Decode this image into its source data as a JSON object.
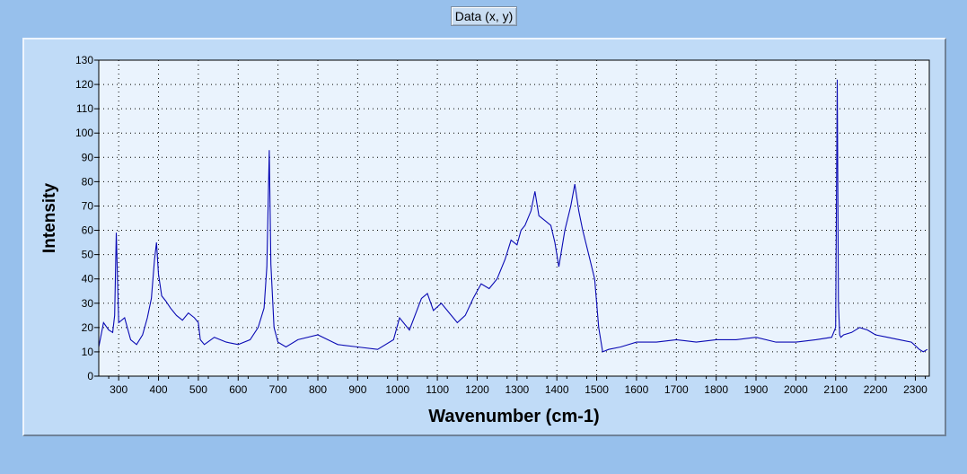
{
  "toolbar": {
    "data_button_label": "Data (x, y)"
  },
  "chart_data": {
    "type": "line",
    "title": "",
    "xlabel": "Wavenumber (cm-1)",
    "ylabel": "Intensity",
    "xlim": [
      250,
      2335
    ],
    "ylim": [
      0,
      130
    ],
    "x_ticks": [
      300,
      400,
      500,
      600,
      700,
      800,
      900,
      1000,
      1100,
      1200,
      1300,
      1400,
      1500,
      1600,
      1700,
      1800,
      1900,
      2000,
      2100,
      2200,
      2300
    ],
    "y_ticks": [
      0,
      10,
      20,
      30,
      40,
      50,
      60,
      70,
      80,
      90,
      100,
      110,
      120,
      130
    ],
    "grid": true,
    "legend": "none",
    "line_color": "#0a0ab4",
    "series": [
      {
        "x": [
          250,
          262,
          275,
          285,
          290,
          294,
          300,
          315,
          330,
          345,
          360,
          372,
          382,
          390,
          395,
          400,
          408,
          418,
          430,
          445,
          460,
          475,
          490,
          500,
          505,
          515,
          540,
          570,
          600,
          630,
          650,
          665,
          672,
          678,
          682,
          690,
          700,
          720,
          750,
          800,
          850,
          900,
          950,
          990,
          1005,
          1030,
          1060,
          1075,
          1090,
          1110,
          1130,
          1150,
          1170,
          1190,
          1210,
          1230,
          1250,
          1270,
          1285,
          1300,
          1310,
          1320,
          1335,
          1345,
          1355,
          1370,
          1385,
          1395,
          1405,
          1420,
          1435,
          1445,
          1455,
          1465,
          1480,
          1495,
          1505,
          1515,
          1530,
          1560,
          1600,
          1650,
          1700,
          1750,
          1800,
          1850,
          1900,
          1950,
          2000,
          2050,
          2090,
          2100,
          2104,
          2107,
          2110,
          2113,
          2120,
          2140,
          2160,
          2180,
          2200,
          2230,
          2260,
          2290,
          2310,
          2320,
          2330
        ],
        "y": [
          12,
          22,
          19,
          18,
          25,
          59,
          22,
          24,
          15,
          13,
          17,
          24,
          32,
          48,
          55,
          42,
          33,
          31,
          28,
          25,
          23,
          26,
          24,
          22,
          15,
          13,
          16,
          14,
          13,
          15,
          20,
          28,
          45,
          93,
          46,
          20,
          14,
          12,
          15,
          17,
          13,
          12,
          11,
          15,
          24,
          19,
          32,
          34,
          27,
          30,
          26,
          22,
          25,
          32,
          38,
          36,
          40,
          48,
          56,
          54,
          60,
          62,
          68,
          76,
          66,
          64,
          62,
          55,
          45,
          60,
          70,
          79,
          68,
          60,
          50,
          40,
          20,
          10,
          11,
          12,
          14,
          14,
          15,
          14,
          15,
          15,
          16,
          14,
          14,
          15,
          16,
          20,
          122,
          30,
          17,
          16,
          17,
          18,
          20,
          19,
          17,
          16,
          15,
          14,
          11,
          10,
          11
        ]
      }
    ]
  }
}
